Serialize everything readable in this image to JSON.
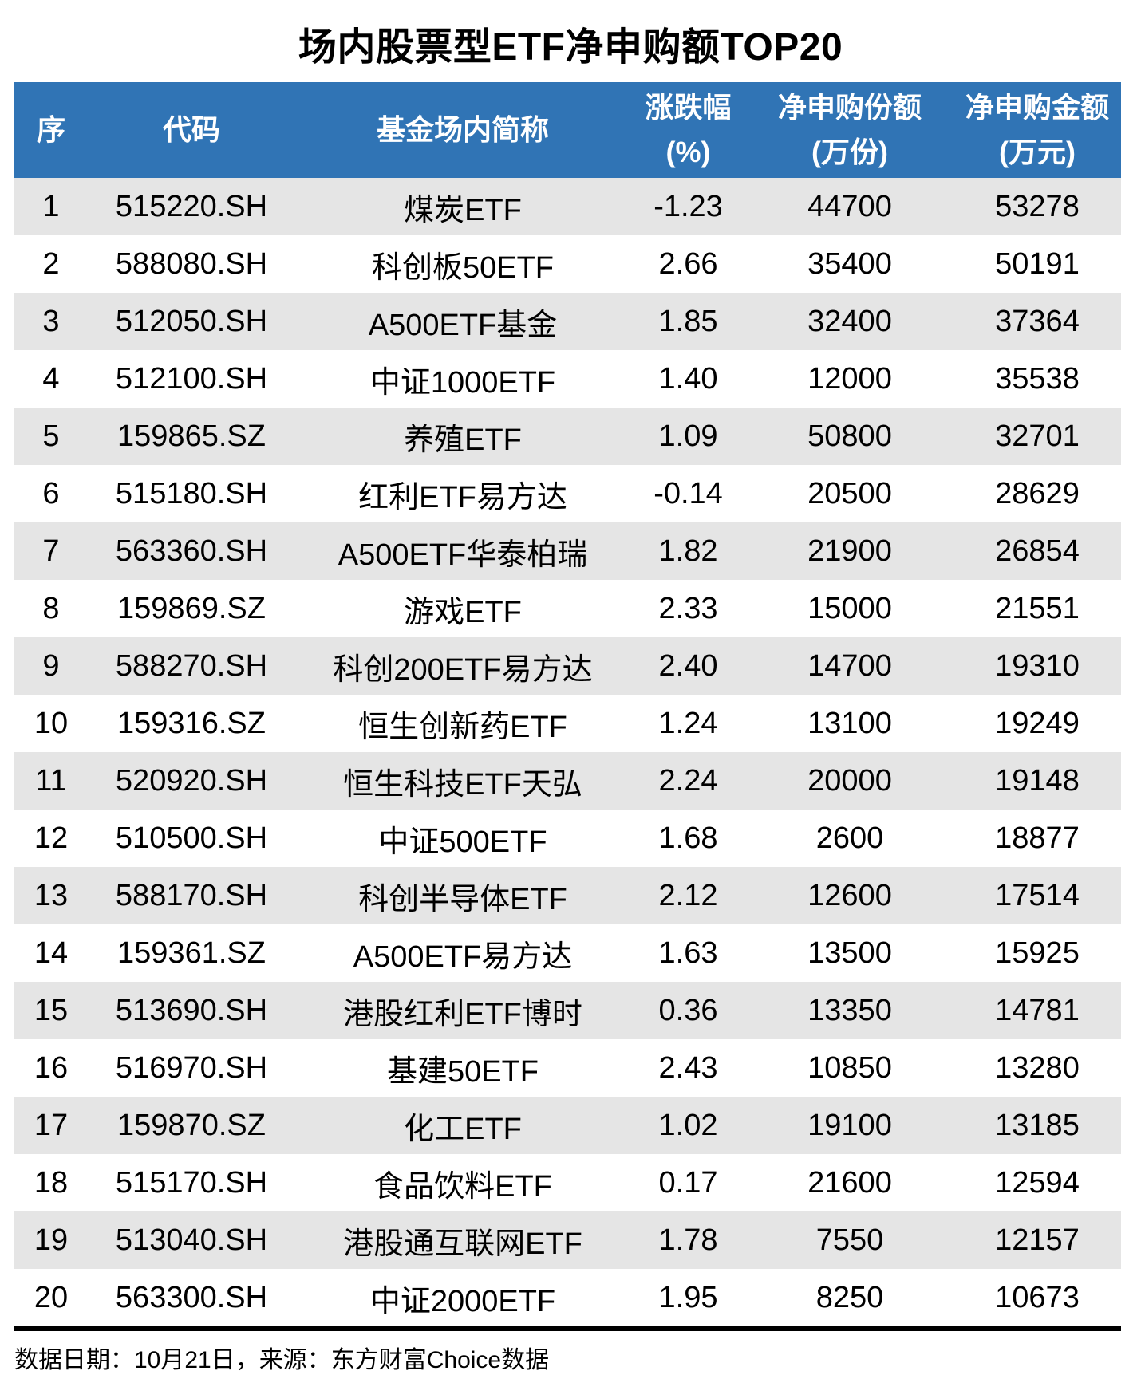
{
  "page": {
    "title": "场内股票型ETF净申购额TOP20",
    "footer": "数据日期：10月21日，来源：东方财富Choice数据"
  },
  "colors": {
    "header_bg": "#3074B5",
    "header_text": "#FFFFFF",
    "row_bg": "#FFFFFF",
    "row_alt_bg": "#E5E5E5",
    "divider": "#000000",
    "body_text": "#000000"
  },
  "columns": [
    {
      "line1": "序",
      "line2": ""
    },
    {
      "line1": "代码",
      "line2": ""
    },
    {
      "line1": "基金场内简称",
      "line2": ""
    },
    {
      "line1": "涨跌幅",
      "line2": "(%)"
    },
    {
      "line1": "净申购份额",
      "line2": "(万份)"
    },
    {
      "line1": "净申购金额",
      "line2": "(万元)"
    }
  ],
  "rows": [
    {
      "rank": "1",
      "code": "515220.SH",
      "name": "煤炭ETF",
      "change": "-1.23",
      "shares": "44700",
      "amount": "53278"
    },
    {
      "rank": "2",
      "code": "588080.SH",
      "name": "科创板50ETF",
      "change": "2.66",
      "shares": "35400",
      "amount": "50191"
    },
    {
      "rank": "3",
      "code": "512050.SH",
      "name": "A500ETF基金",
      "change": "1.85",
      "shares": "32400",
      "amount": "37364"
    },
    {
      "rank": "4",
      "code": "512100.SH",
      "name": "中证1000ETF",
      "change": "1.40",
      "shares": "12000",
      "amount": "35538"
    },
    {
      "rank": "5",
      "code": "159865.SZ",
      "name": "养殖ETF",
      "change": "1.09",
      "shares": "50800",
      "amount": "32701"
    },
    {
      "rank": "6",
      "code": "515180.SH",
      "name": "红利ETF易方达",
      "change": "-0.14",
      "shares": "20500",
      "amount": "28629"
    },
    {
      "rank": "7",
      "code": "563360.SH",
      "name": "A500ETF华泰柏瑞",
      "change": "1.82",
      "shares": "21900",
      "amount": "26854"
    },
    {
      "rank": "8",
      "code": "159869.SZ",
      "name": "游戏ETF",
      "change": "2.33",
      "shares": "15000",
      "amount": "21551"
    },
    {
      "rank": "9",
      "code": "588270.SH",
      "name": "科创200ETF易方达",
      "change": "2.40",
      "shares": "14700",
      "amount": "19310"
    },
    {
      "rank": "10",
      "code": "159316.SZ",
      "name": "恒生创新药ETF",
      "change": "1.24",
      "shares": "13100",
      "amount": "19249"
    },
    {
      "rank": "11",
      "code": "520920.SH",
      "name": "恒生科技ETF天弘",
      "change": "2.24",
      "shares": "20000",
      "amount": "19148"
    },
    {
      "rank": "12",
      "code": "510500.SH",
      "name": "中证500ETF",
      "change": "1.68",
      "shares": "2600",
      "amount": "18877"
    },
    {
      "rank": "13",
      "code": "588170.SH",
      "name": "科创半导体ETF",
      "change": "2.12",
      "shares": "12600",
      "amount": "17514"
    },
    {
      "rank": "14",
      "code": "159361.SZ",
      "name": "A500ETF易方达",
      "change": "1.63",
      "shares": "13500",
      "amount": "15925"
    },
    {
      "rank": "15",
      "code": "513690.SH",
      "name": "港股红利ETF博时",
      "change": "0.36",
      "shares": "13350",
      "amount": "14781"
    },
    {
      "rank": "16",
      "code": "516970.SH",
      "name": "基建50ETF",
      "change": "2.43",
      "shares": "10850",
      "amount": "13280"
    },
    {
      "rank": "17",
      "code": "159870.SZ",
      "name": "化工ETF",
      "change": "1.02",
      "shares": "19100",
      "amount": "13185"
    },
    {
      "rank": "18",
      "code": "515170.SH",
      "name": "食品饮料ETF",
      "change": "0.17",
      "shares": "21600",
      "amount": "12594"
    },
    {
      "rank": "19",
      "code": "513040.SH",
      "name": "港股通互联网ETF",
      "change": "1.78",
      "shares": "7550",
      "amount": "12157"
    },
    {
      "rank": "20",
      "code": "563300.SH",
      "name": "中证2000ETF",
      "change": "1.95",
      "shares": "8250",
      "amount": "10673"
    }
  ],
  "chart_data": {
    "type": "table",
    "title": "场内股票型ETF净申购额TOP20",
    "columns": [
      "序",
      "代码",
      "基金场内简称",
      "涨跌幅(%)",
      "净申购份额(万份)",
      "净申购金额(万元)"
    ],
    "rows": [
      [
        1,
        "515220.SH",
        "煤炭ETF",
        -1.23,
        44700,
        53278
      ],
      [
        2,
        "588080.SH",
        "科创板50ETF",
        2.66,
        35400,
        50191
      ],
      [
        3,
        "512050.SH",
        "A500ETF基金",
        1.85,
        32400,
        37364
      ],
      [
        4,
        "512100.SH",
        "中证1000ETF",
        1.4,
        12000,
        35538
      ],
      [
        5,
        "159865.SZ",
        "养殖ETF",
        1.09,
        50800,
        32701
      ],
      [
        6,
        "515180.SH",
        "红利ETF易方达",
        -0.14,
        20500,
        28629
      ],
      [
        7,
        "563360.SH",
        "A500ETF华泰柏瑞",
        1.82,
        21900,
        26854
      ],
      [
        8,
        "159869.SZ",
        "游戏ETF",
        2.33,
        15000,
        21551
      ],
      [
        9,
        "588270.SH",
        "科创200ETF易方达",
        2.4,
        14700,
        19310
      ],
      [
        10,
        "159316.SZ",
        "恒生创新药ETF",
        1.24,
        13100,
        19249
      ],
      [
        11,
        "520920.SH",
        "恒生科技ETF天弘",
        2.24,
        20000,
        19148
      ],
      [
        12,
        "510500.SH",
        "中证500ETF",
        1.68,
        2600,
        18877
      ],
      [
        13,
        "588170.SH",
        "科创半导体ETF",
        2.12,
        12600,
        17514
      ],
      [
        14,
        "159361.SZ",
        "A500ETF易方达",
        1.63,
        13500,
        15925
      ],
      [
        15,
        "513690.SH",
        "港股红利ETF博时",
        0.36,
        13350,
        14781
      ],
      [
        16,
        "516970.SH",
        "基建50ETF",
        2.43,
        10850,
        13280
      ],
      [
        17,
        "159870.SZ",
        "化工ETF",
        1.02,
        19100,
        13185
      ],
      [
        18,
        "515170.SH",
        "食品饮料ETF",
        0.17,
        21600,
        12594
      ],
      [
        19,
        "513040.SH",
        "港股通互联网ETF",
        1.78,
        7550,
        12157
      ],
      [
        20,
        "563300.SH",
        "中证2000ETF",
        1.95,
        8250,
        10673
      ]
    ],
    "source_note": "数据日期：10月21日，来源：东方财富Choice数据"
  }
}
